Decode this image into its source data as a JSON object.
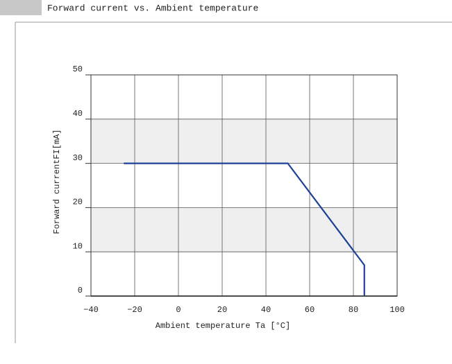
{
  "chart_data": {
    "type": "line",
    "title": "Forward current vs. Ambient temperature",
    "xlabel": "Ambient temperature Ta [°C]",
    "ylabel": "Forward currentFI[mA]",
    "x": [
      -25,
      50,
      85,
      85
    ],
    "series": [
      {
        "color": "#1f3f99",
        "values": [
          30,
          30,
          7,
          0
        ]
      }
    ],
    "xlim": [
      -40,
      100
    ],
    "xticks": [
      {
        "value": -40,
        "label": "−40"
      },
      {
        "value": -20,
        "label": "−20"
      },
      0,
      20,
      40,
      60,
      80,
      100
    ],
    "ylim": [
      0,
      50
    ],
    "yticks": [
      0,
      10,
      20,
      30,
      40,
      50
    ],
    "grid": true
  }
}
